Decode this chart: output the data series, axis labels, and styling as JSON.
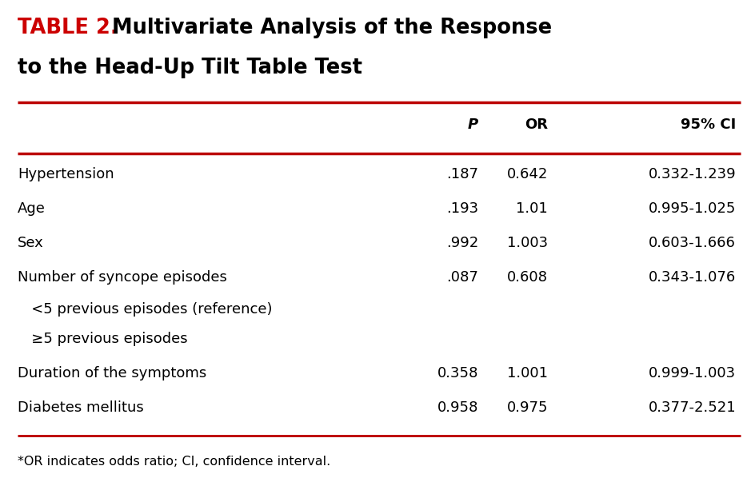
{
  "title_prefix": "TABLE 2.",
  "title_main_line1": " Multivariate Analysis of the Response",
  "title_main_line2": "to the Head-Up Tilt Table Test",
  "title_prefix_color": "#cc0000",
  "title_main_color": "#000000",
  "header_row": [
    "",
    "P",
    "OR",
    "95% CI"
  ],
  "rows": [
    [
      "Hypertension",
      ".187",
      "0.642",
      "0.332-1.239"
    ],
    [
      "Age",
      ".193",
      "1.01",
      "0.995-1.025"
    ],
    [
      "Sex",
      ".992",
      "1.003",
      "0.603-1.666"
    ],
    [
      "Number of syncope episodes",
      ".087",
      "0.608",
      "0.343-1.076"
    ],
    [
      "   <5 previous episodes (reference)",
      "",
      "",
      ""
    ],
    [
      "   ≥5 previous episodes",
      "",
      "",
      ""
    ],
    [
      "Duration of the symptoms",
      "0.358",
      "1.001",
      "0.999-1.003"
    ],
    [
      "Diabetes mellitus",
      "0.958",
      "0.975",
      "0.377-2.521"
    ]
  ],
  "footnote": "*OR indicates odds ratio; CI, confidence interval.",
  "bg_color": "#ffffff",
  "line_color": "#bb0000",
  "text_color": "#000000",
  "font_size": 13.0,
  "header_font_size": 13.0,
  "title_font_size": 18.5,
  "footnote_font_size": 11.5,
  "fig_width": 9.44,
  "fig_height": 6.13,
  "dpi": 100
}
